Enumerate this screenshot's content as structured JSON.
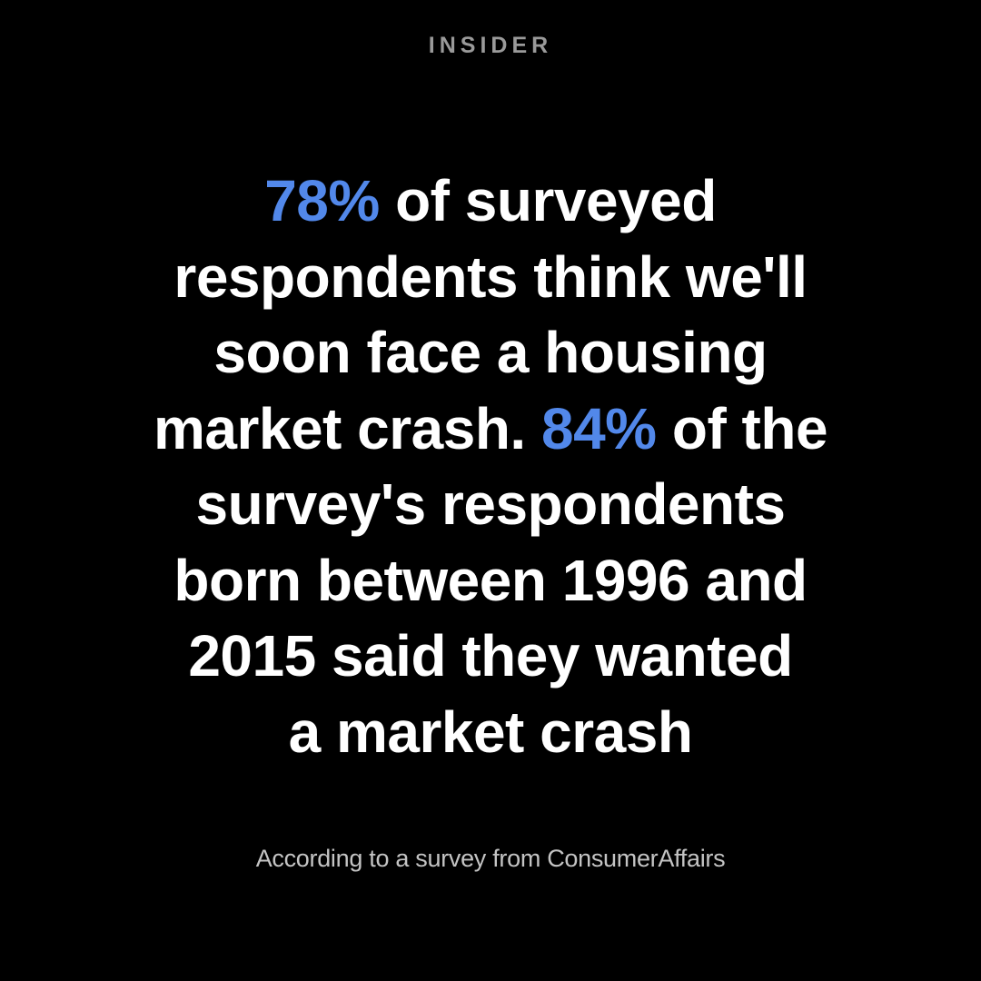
{
  "header": {
    "brand": "INSIDER"
  },
  "headline": {
    "highlight_color": "#5288ea",
    "lines": [
      [
        {
          "text": "78%",
          "highlight": true
        },
        {
          "text": " of surveyed"
        }
      ],
      [
        {
          "text": "respondents think we'll"
        }
      ],
      [
        {
          "text": "soon face a housing"
        }
      ],
      [
        {
          "text": "market crash. "
        },
        {
          "text": "84%",
          "highlight": true
        },
        {
          "text": " of the"
        }
      ],
      [
        {
          "text": "survey's respondents"
        }
      ],
      [
        {
          "text": "born between 1996 and"
        }
      ],
      [
        {
          "text": "2015 said they wanted"
        }
      ],
      [
        {
          "text": "a market crash"
        }
      ]
    ]
  },
  "footer": {
    "source": "According to a survey from ConsumerAffairs"
  }
}
